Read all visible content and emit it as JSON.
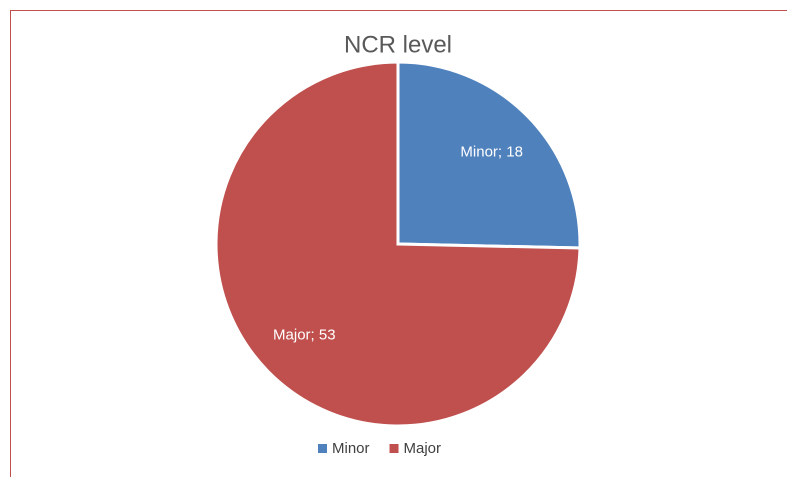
{
  "chart_data": {
    "type": "pie",
    "title": "NCR level",
    "categories": [
      "Minor",
      "Major"
    ],
    "values": [
      18,
      53
    ],
    "value_labels": [
      "Minor; 18",
      "Major; 53"
    ],
    "colors": [
      "#4f81bd",
      "#c0504d"
    ],
    "legend": "bottom"
  }
}
